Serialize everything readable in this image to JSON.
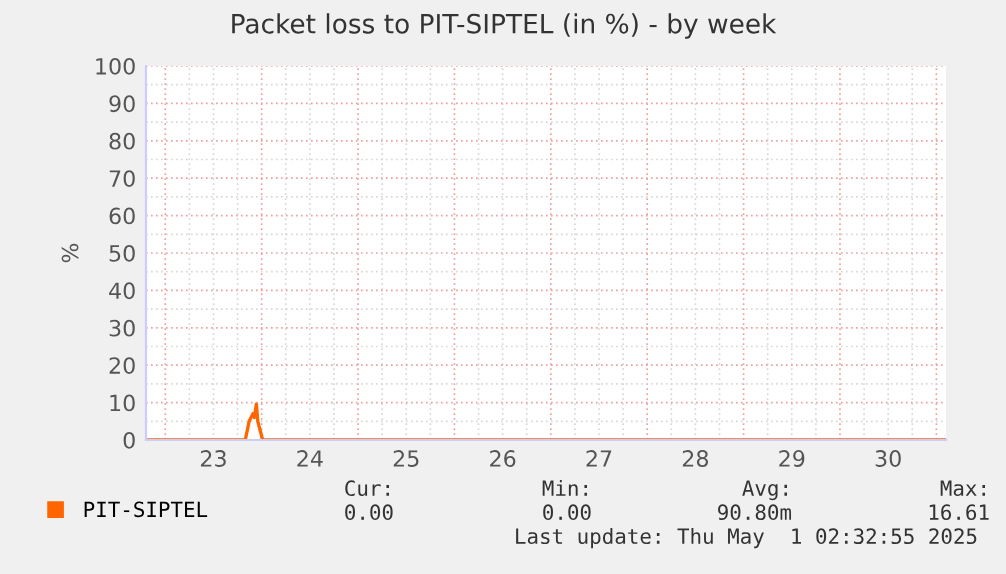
{
  "chart_data": {
    "type": "line",
    "title": "Packet loss to PIT-SIPTEL (in %) - by week",
    "ylabel": "%",
    "x": [
      22.8,
      23.8,
      23.83,
      23.87,
      23.89,
      23.91,
      23.925,
      23.945,
      23.96,
      23.98,
      24.01,
      31.1
    ],
    "series": [
      {
        "name": "PIT-SIPTEL",
        "color": "#ff6600",
        "values": [
          0,
          0,
          0,
          5,
          6,
          7,
          6,
          9.6,
          5,
          3,
          0,
          0
        ]
      }
    ],
    "xlim": [
      22.8,
      31.1
    ],
    "xticks": [
      {
        "value": 23.5,
        "label": "23"
      },
      {
        "value": 24.5,
        "label": "24"
      },
      {
        "value": 25.5,
        "label": "25"
      },
      {
        "value": 26.5,
        "label": "26"
      },
      {
        "value": 27.5,
        "label": "27"
      },
      {
        "value": 28.5,
        "label": "28"
      },
      {
        "value": 29.5,
        "label": "29"
      },
      {
        "value": 30.5,
        "label": "30"
      }
    ],
    "ylim": [
      0,
      100
    ],
    "yticks": [
      0,
      10,
      20,
      30,
      40,
      50,
      60,
      70,
      80,
      90,
      100
    ],
    "grid": true,
    "legend": "bottom left",
    "annotations": [
      "Cur:",
      "Min:",
      "Avg:",
      "Max:",
      "0.00",
      "0.00",
      "90.80m",
      "16.61",
      "Last update: Thu May  1 02:32:55 2025"
    ]
  }
}
